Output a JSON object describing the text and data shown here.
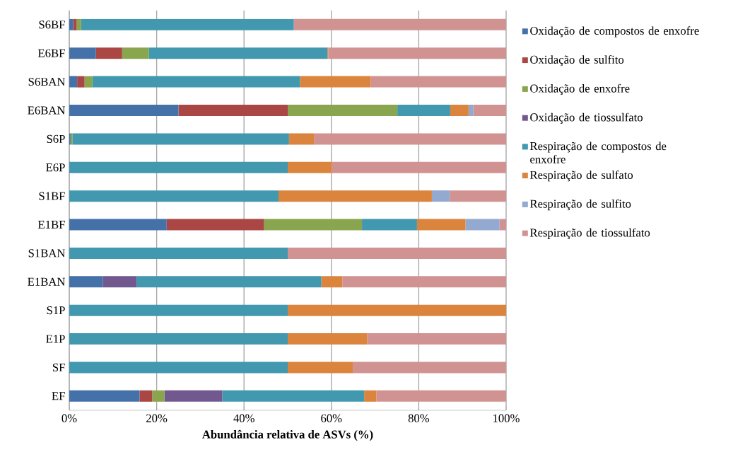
{
  "chart_data": {
    "type": "bar",
    "orientation": "horizontal",
    "stacked": true,
    "xlabel": "Abundância relativa de ASVs (%)",
    "categories": [
      "S6BF",
      "E6BF",
      "S6BAN",
      "E6BAN",
      "S6P",
      "E6P",
      "S1BF",
      "E1BF",
      "S1BAN",
      "E1BAN",
      "S1P",
      "E1P",
      "SF",
      "EF"
    ],
    "series": [
      {
        "name": "Oxidação de compostos de enxofre",
        "color": "#4472a8",
        "values": [
          0.9,
          6.1,
          1.8,
          25.0,
          0.3,
          0,
          0,
          22.3,
          0,
          7.7,
          0,
          0,
          0,
          16.1
        ]
      },
      {
        "name": "Oxidação de sulfito",
        "color": "#aa4644",
        "values": [
          0.8,
          6.0,
          1.7,
          25.0,
          0,
          0,
          0,
          22.3,
          0,
          0,
          0,
          0,
          0,
          2.9
        ]
      },
      {
        "name": "Oxidação de enxofre",
        "color": "#89a54e",
        "values": [
          1.0,
          6.1,
          1.8,
          25.1,
          0.4,
          0,
          0,
          22.4,
          0,
          0,
          0,
          0,
          0,
          2.8
        ]
      },
      {
        "name": "Oxidação de tiossulfato",
        "color": "#71588f",
        "values": [
          0,
          0,
          0,
          0,
          0,
          0,
          0,
          0,
          0,
          7.7,
          0,
          0,
          0,
          13.2
        ]
      },
      {
        "name": "Respiração de compostos de enxofre",
        "color": "#4198af",
        "values": [
          48.7,
          40.9,
          47.5,
          12.1,
          49.6,
          50.0,
          47.9,
          12.6,
          50.0,
          42.3,
          50.0,
          50.0,
          50.0,
          32.5
        ]
      },
      {
        "name": "Respiração de sulfato",
        "color": "#db843d",
        "values": [
          0,
          0.2,
          16.2,
          4.2,
          5.7,
          10.1,
          35.1,
          11.1,
          0,
          4.8,
          50.0,
          18.2,
          14.9,
          2.8
        ]
      },
      {
        "name": "Respiração de sulfito",
        "color": "#93a9cf",
        "values": [
          0,
          0,
          0,
          1.1,
          0,
          0,
          4.1,
          7.8,
          0,
          0,
          0,
          0,
          0,
          0
        ]
      },
      {
        "name": "Respiração de tiossulfato",
        "color": "#d19392",
        "values": [
          48.6,
          40.7,
          31.0,
          7.5,
          44.0,
          39.9,
          12.9,
          1.5,
          50.0,
          37.5,
          0,
          31.8,
          35.1,
          29.7
        ]
      }
    ],
    "xlim": [
      0,
      100
    ],
    "xticks": [
      {
        "value": 0,
        "label": "0%"
      },
      {
        "value": 20,
        "label": "20%"
      },
      {
        "value": 40,
        "label": "40%"
      },
      {
        "value": 60,
        "label": "60%"
      },
      {
        "value": 80,
        "label": "80%"
      },
      {
        "value": 100,
        "label": "100%"
      }
    ],
    "grid": "x",
    "legend": "right"
  }
}
